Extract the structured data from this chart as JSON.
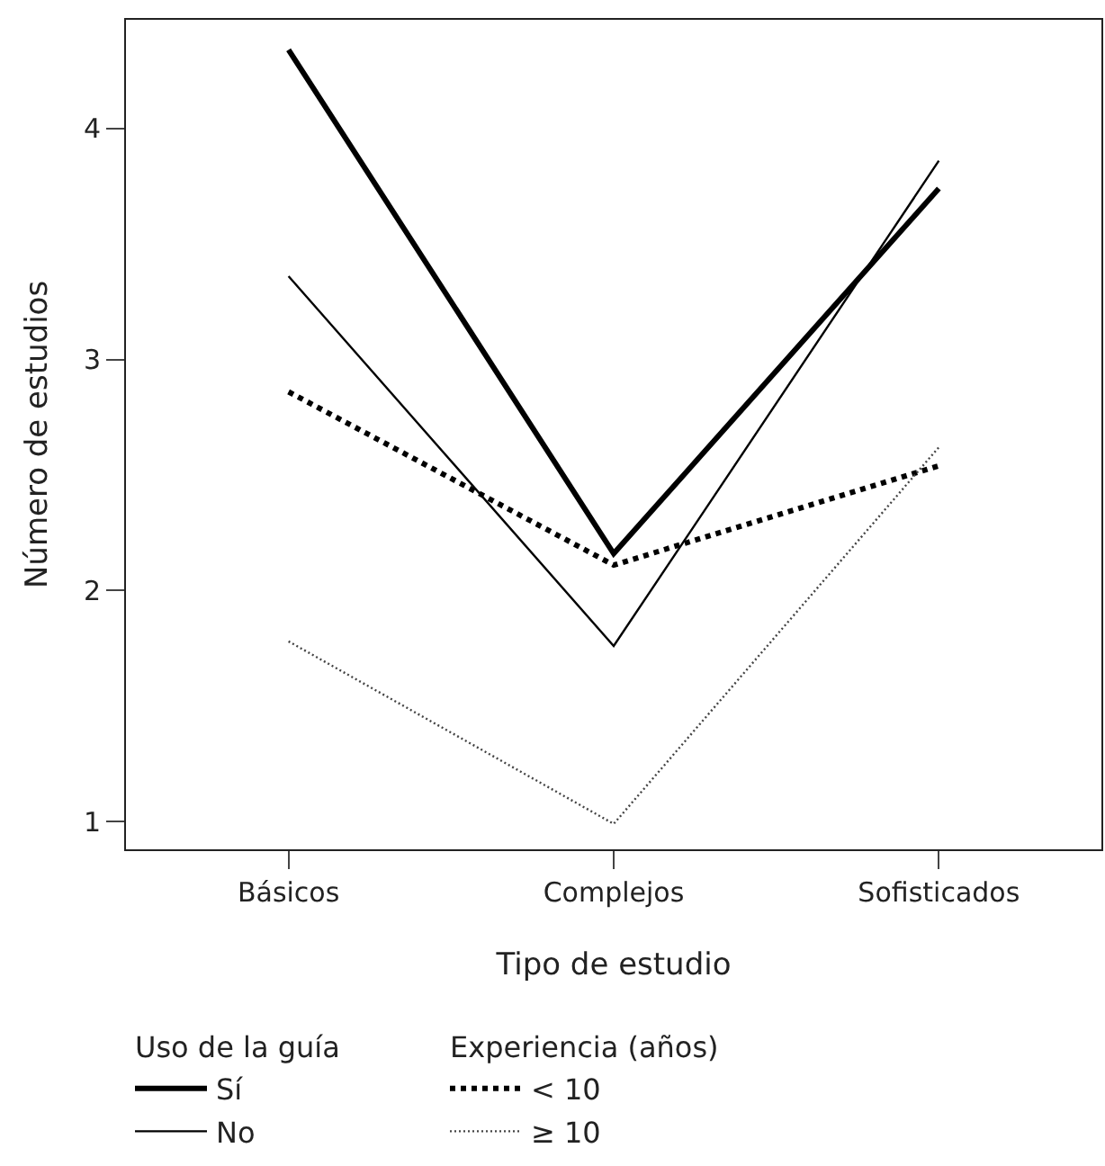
{
  "chart_data": {
    "type": "line",
    "xlabel": "Tipo de estudio",
    "ylabel": "Número de estudios",
    "categories": [
      "Básicos",
      "Complejos",
      "Sofisticados"
    ],
    "legend_title": [
      "Uso de la guía",
      "Experiencia (años)"
    ],
    "series": [
      {
        "name": "Sí",
        "color": "#000000",
        "values": [
          4.34,
          2.16,
          3.74
        ],
        "line_style": "solid"
      },
      {
        "name": "No",
        "color": "#000000",
        "values": [
          3.36,
          1.76,
          3.86
        ],
        "line_style": "solid"
      },
      {
        "name": "< 10",
        "color": "#000000",
        "values": [
          2.86,
          2.11,
          2.54
        ],
        "line_style": "dotted"
      },
      {
        "name": "≥ 10",
        "color": "#444444",
        "values": [
          1.78,
          0.99,
          2.62
        ],
        "line_style": "dotted"
      }
    ],
    "ylim": [
      0.88,
      4.47
    ],
    "yticks": [
      1,
      2,
      3,
      4
    ],
    "legend": "bottom",
    "marker": "none"
  }
}
